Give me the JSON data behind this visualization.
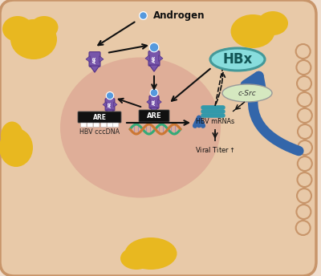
{
  "figsize": [
    4.0,
    3.44
  ],
  "dpi": 100,
  "bg_color": "#f0dece",
  "cell_color": "#e8c9a8",
  "cell_edge_color": "#c8956a",
  "nucleus_color": "#dba090",
  "yellow_blob_color": "#e8b820",
  "purple_color": "#7755aa",
  "purple_dark": "#553388",
  "blue_ball_color": "#5599dd",
  "hbx_fill": "#88dddd",
  "hbx_edge": "#449999",
  "csrc_fill": "#d5e8c0",
  "csrc_edge": "#999999",
  "teal_color": "#3399aa",
  "big_arrow_color": "#3366aa",
  "dna_green": "#33aa77",
  "dna_orange": "#cc7733",
  "black": "#111111",
  "white": "#ffffff",
  "androgen_text": "Androgen",
  "hbx_text": "HBx",
  "csrc_text": "c-Src",
  "are_text": "ARE",
  "hbv_cccdna_text": "HBV cccDNA",
  "hbv_mrna_text": "HBV mRNAs",
  "viral_titer_text": "Viral Titer"
}
